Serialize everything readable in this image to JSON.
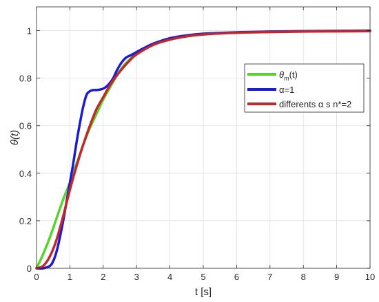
{
  "chart_data": {
    "type": "line",
    "xlabel": "t [s]",
    "ylabel": "θ(t)",
    "xlim": [
      0,
      10
    ],
    "ylim": [
      0,
      1.1
    ],
    "xticks": [
      0,
      1,
      2,
      3,
      4,
      5,
      6,
      7,
      8,
      9,
      10
    ],
    "yticks": [
      0,
      0.2,
      0.4,
      0.6,
      0.8,
      1
    ],
    "xtick_labels": [
      "0",
      "1",
      "2",
      "3",
      "4",
      "5",
      "6",
      "7",
      "8",
      "9",
      "10"
    ],
    "ytick_labels": [
      "0",
      "0.2",
      "0.4",
      "0.6",
      "0.8",
      "1"
    ],
    "grid": true,
    "legend_position": "right",
    "series": [
      {
        "name": "θm(t)",
        "name_parts": {
          "base": "θ",
          "sub": "m",
          "tail": "(t)"
        },
        "color": "#55d52b",
        "x": [
          0,
          0.2,
          0.4,
          0.6,
          0.8,
          1.0,
          1.2,
          1.4,
          1.6,
          1.8,
          2.0,
          2.2,
          2.4,
          2.6,
          2.8,
          3.0,
          3.5,
          4.0,
          4.5,
          5.0,
          6.0,
          7.0,
          8.0,
          9.0,
          10.0
        ],
        "y": [
          0,
          0.06,
          0.13,
          0.21,
          0.29,
          0.36,
          0.44,
          0.52,
          0.59,
          0.65,
          0.71,
          0.76,
          0.81,
          0.85,
          0.88,
          0.905,
          0.945,
          0.965,
          0.978,
          0.985,
          0.992,
          0.995,
          0.997,
          0.998,
          0.999
        ]
      },
      {
        "name": "α=1",
        "color": "#1a1ad8",
        "x": [
          0,
          0.2,
          0.4,
          0.5,
          0.6,
          0.7,
          0.8,
          0.9,
          1.0,
          1.1,
          1.2,
          1.3,
          1.4,
          1.5,
          1.6,
          1.7,
          1.8,
          1.9,
          2.0,
          2.1,
          2.2,
          2.3,
          2.4,
          2.5,
          2.6,
          2.7,
          2.8,
          2.9,
          3.0,
          3.2,
          3.5,
          4.0,
          4.5,
          5.0,
          6.0,
          7.0,
          8.0,
          9.0,
          10.0
        ],
        "y": [
          0,
          0,
          0.01,
          0.03,
          0.07,
          0.13,
          0.2,
          0.28,
          0.36,
          0.44,
          0.53,
          0.61,
          0.68,
          0.73,
          0.745,
          0.75,
          0.75,
          0.752,
          0.756,
          0.765,
          0.78,
          0.8,
          0.83,
          0.855,
          0.875,
          0.888,
          0.895,
          0.902,
          0.91,
          0.925,
          0.945,
          0.968,
          0.98,
          0.987,
          0.993,
          0.996,
          0.998,
          0.999,
          1.0
        ]
      },
      {
        "name": "differents α s  n*=2",
        "name_parts": {
          "pre": "differents ",
          "greek": "α",
          "post": " s  n*=2"
        },
        "color": "#c1282c",
        "x": [
          0,
          0.2,
          0.4,
          0.6,
          0.8,
          1.0,
          1.2,
          1.4,
          1.6,
          1.8,
          2.0,
          2.2,
          2.4,
          2.6,
          2.8,
          3.0,
          3.5,
          4.0,
          4.5,
          5.0,
          6.0,
          7.0,
          8.0,
          9.0,
          10.0
        ],
        "y": [
          0,
          0.01,
          0.05,
          0.12,
          0.22,
          0.33,
          0.43,
          0.52,
          0.6,
          0.67,
          0.72,
          0.77,
          0.81,
          0.845,
          0.875,
          0.9,
          0.94,
          0.962,
          0.976,
          0.984,
          0.991,
          0.994,
          0.996,
          0.997,
          0.998
        ]
      }
    ]
  }
}
